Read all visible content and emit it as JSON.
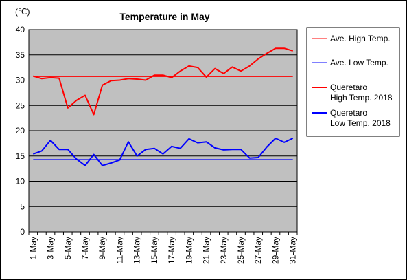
{
  "chart_data": {
    "type": "line",
    "title": "Temperature in May",
    "unit_label": "(℃)",
    "ylim": [
      0,
      40
    ],
    "y_ticks": [
      0,
      5,
      10,
      15,
      20,
      25,
      30,
      35,
      40
    ],
    "x": [
      "1-May",
      "2-May",
      "3-May",
      "4-May",
      "5-May",
      "6-May",
      "7-May",
      "8-May",
      "9-May",
      "10-May",
      "11-May",
      "12-May",
      "13-May",
      "14-May",
      "15-May",
      "16-May",
      "17-May",
      "18-May",
      "19-May",
      "20-May",
      "21-May",
      "22-May",
      "23-May",
      "24-May",
      "25-May",
      "26-May",
      "27-May",
      "28-May",
      "29-May",
      "30-May",
      "31-May"
    ],
    "x_tick_labels": [
      "1-May",
      "3-May",
      "5-May",
      "7-May",
      "9-May",
      "11-May",
      "13-May",
      "15-May",
      "17-May",
      "19-May",
      "21-May",
      "23-May",
      "25-May",
      "27-May",
      "29-May",
      "31-May"
    ],
    "plot_background": "#c0c0c0",
    "grid": true,
    "legend_position": "right",
    "series": [
      {
        "name": "Ave. High Temp.",
        "color": "#ff0000",
        "width": 1,
        "values": [
          30.7,
          30.7,
          30.7,
          30.7,
          30.7,
          30.7,
          30.7,
          30.7,
          30.7,
          30.7,
          30.7,
          30.7,
          30.7,
          30.7,
          30.7,
          30.7,
          30.7,
          30.7,
          30.7,
          30.7,
          30.7,
          30.7,
          30.7,
          30.7,
          30.7,
          30.7,
          30.7,
          30.7,
          30.7,
          30.7,
          30.7
        ]
      },
      {
        "name": "Ave. Low Temp.",
        "color": "#0000ff",
        "width": 1,
        "values": [
          14.3,
          14.3,
          14.3,
          14.3,
          14.3,
          14.3,
          14.3,
          14.3,
          14.3,
          14.3,
          14.3,
          14.3,
          14.3,
          14.3,
          14.3,
          14.3,
          14.3,
          14.3,
          14.3,
          14.3,
          14.3,
          14.3,
          14.3,
          14.3,
          14.3,
          14.3,
          14.3,
          14.3,
          14.3,
          14.3,
          14.3
        ]
      },
      {
        "name": "Queretaro High Temp. 2018",
        "legend_lines": [
          "Queretaro",
          "High Temp. 2018"
        ],
        "color": "#ff0000",
        "width": 2,
        "values": [
          30.8,
          30.3,
          30.5,
          30.4,
          24.5,
          26.0,
          27.0,
          23.2,
          29.0,
          29.9,
          30.0,
          30.3,
          30.2,
          30.0,
          31.0,
          31.0,
          30.5,
          31.8,
          32.8,
          32.5,
          30.6,
          32.3,
          31.3,
          32.6,
          31.8,
          32.8,
          34.2,
          35.3,
          36.3,
          36.3,
          35.8
        ]
      },
      {
        "name": "Queretaro Low Temp. 2018",
        "legend_lines": [
          "Queretaro",
          "Low Temp. 2018"
        ],
        "color": "#0000ff",
        "width": 2,
        "values": [
          15.4,
          16.0,
          18.1,
          16.3,
          16.3,
          14.4,
          13.1,
          15.3,
          13.1,
          13.6,
          14.2,
          17.8,
          15.0,
          16.3,
          16.5,
          15.4,
          16.9,
          16.5,
          18.4,
          17.6,
          17.8,
          16.6,
          16.2,
          16.3,
          16.3,
          14.6,
          14.7,
          16.8,
          18.5,
          17.7,
          18.5
        ]
      }
    ]
  }
}
